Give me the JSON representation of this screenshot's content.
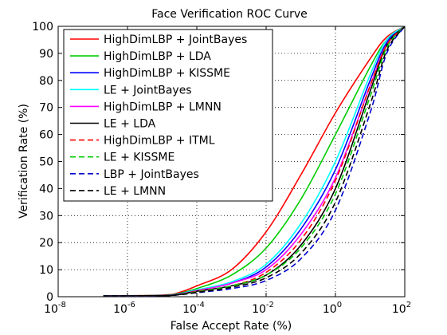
{
  "chart_data": {
    "type": "line",
    "title": "Face Verification ROC Curve",
    "xlabel": "False Accept Rate (%)",
    "ylabel": "Verification Rate (%)",
    "xscale": "log",
    "xlim": [
      1e-08,
      100
    ],
    "ylim": [
      0,
      100
    ],
    "grid": true,
    "legend_position": "top-left",
    "x_ticks": [
      {
        "value": 1e-08,
        "base": "10",
        "exp": "-8"
      },
      {
        "value": 1e-06,
        "base": "10",
        "exp": "-6"
      },
      {
        "value": 0.0001,
        "base": "10",
        "exp": "-4"
      },
      {
        "value": 0.01,
        "base": "10",
        "exp": "-2"
      },
      {
        "value": 1,
        "base": "10",
        "exp": "0"
      },
      {
        "value": 100,
        "base": "10",
        "exp": "2"
      }
    ],
    "y_ticks": [
      0,
      10,
      20,
      30,
      40,
      50,
      60,
      70,
      80,
      90,
      100
    ],
    "series": [
      {
        "name": "HighDimLBP + JointBayes",
        "color": "#ff0000",
        "dash": "solid",
        "points": [
          [
            2e-07,
            0.3
          ],
          [
            1e-05,
            0.6
          ],
          [
            3e-05,
            1.5
          ],
          [
            0.0001,
            4
          ],
          [
            0.001,
            10
          ],
          [
            0.01,
            24
          ],
          [
            0.1,
            45
          ],
          [
            1,
            68
          ],
          [
            10,
            88
          ],
          [
            30,
            96
          ],
          [
            100,
            100
          ]
        ]
      },
      {
        "name": "HighDimLBP + LDA",
        "color": "#00cc00",
        "dash": "solid",
        "points": [
          [
            2e-07,
            0.3
          ],
          [
            1e-05,
            0.5
          ],
          [
            3e-05,
            1.2
          ],
          [
            0.0001,
            3
          ],
          [
            0.001,
            8
          ],
          [
            0.01,
            18
          ],
          [
            0.1,
            36
          ],
          [
            1,
            60
          ],
          [
            10,
            85
          ],
          [
            30,
            95
          ],
          [
            100,
            100
          ]
        ]
      },
      {
        "name": "HighDimLBP + KISSME",
        "color": "#0000ff",
        "dash": "solid",
        "points": [
          [
            2e-07,
            0.3
          ],
          [
            1e-05,
            0.4
          ],
          [
            3e-05,
            1.0
          ],
          [
            0.0001,
            2.5
          ],
          [
            0.001,
            5
          ],
          [
            0.01,
            11
          ],
          [
            0.1,
            25
          ],
          [
            1,
            47
          ],
          [
            10,
            80
          ],
          [
            30,
            94
          ],
          [
            100,
            100
          ]
        ]
      },
      {
        "name": "LE + JointBayes",
        "color": "#00ffff",
        "dash": "solid",
        "points": [
          [
            2e-07,
            0.3
          ],
          [
            1e-05,
            0.4
          ],
          [
            3e-05,
            1.0
          ],
          [
            0.0001,
            2.5
          ],
          [
            0.001,
            5.5
          ],
          [
            0.01,
            12
          ],
          [
            0.1,
            27
          ],
          [
            1,
            50
          ],
          [
            10,
            82
          ],
          [
            30,
            95
          ],
          [
            100,
            100
          ]
        ]
      },
      {
        "name": "HighDimLBP + LMNN",
        "color": "#ff00ff",
        "dash": "solid",
        "points": [
          [
            2e-07,
            0.3
          ],
          [
            1e-05,
            0.4
          ],
          [
            3e-05,
            0.9
          ],
          [
            0.0001,
            2.2
          ],
          [
            0.001,
            5
          ],
          [
            0.01,
            10
          ],
          [
            0.1,
            23
          ],
          [
            1,
            44
          ],
          [
            10,
            78
          ],
          [
            30,
            93
          ],
          [
            100,
            100
          ]
        ]
      },
      {
        "name": "LE + LDA",
        "color": "#000000",
        "dash": "solid",
        "points": [
          [
            2e-07,
            0.3
          ],
          [
            1e-05,
            0.4
          ],
          [
            3e-05,
            0.8
          ],
          [
            0.0001,
            2
          ],
          [
            0.001,
            4
          ],
          [
            0.01,
            8
          ],
          [
            0.1,
            19
          ],
          [
            1,
            40
          ],
          [
            10,
            76
          ],
          [
            30,
            93
          ],
          [
            100,
            100
          ]
        ]
      },
      {
        "name": "HighDimLBP + ITML",
        "color": "#ff0000",
        "dash": "dashed",
        "points": [
          [
            2e-07,
            0.3
          ],
          [
            1e-05,
            0.4
          ],
          [
            3e-05,
            0.8
          ],
          [
            0.0001,
            2
          ],
          [
            0.001,
            4
          ],
          [
            0.01,
            9
          ],
          [
            0.1,
            21
          ],
          [
            1,
            43
          ],
          [
            10,
            78
          ],
          [
            30,
            93
          ],
          [
            100,
            100
          ]
        ]
      },
      {
        "name": "LE + KISSME",
        "color": "#00cc00",
        "dash": "dashed",
        "points": [
          [
            2e-07,
            0.3
          ],
          [
            1e-05,
            0.4
          ],
          [
            3e-05,
            0.8
          ],
          [
            0.0001,
            1.8
          ],
          [
            0.001,
            4
          ],
          [
            0.01,
            8
          ],
          [
            0.1,
            18
          ],
          [
            1,
            38
          ],
          [
            10,
            74
          ],
          [
            30,
            92
          ],
          [
            100,
            100
          ]
        ]
      },
      {
        "name": "LBP + JointBayes",
        "color": "#0000cc",
        "dash": "dashed",
        "points": [
          [
            2e-07,
            0.3
          ],
          [
            1e-05,
            0.4
          ],
          [
            3e-05,
            0.7
          ],
          [
            0.0001,
            1.5
          ],
          [
            0.001,
            3
          ],
          [
            0.01,
            6
          ],
          [
            0.1,
            14
          ],
          [
            1,
            32
          ],
          [
            10,
            68
          ],
          [
            30,
            90
          ],
          [
            100,
            100
          ]
        ]
      },
      {
        "name": "LE + LMNN",
        "color": "#000000",
        "dash": "dashed",
        "points": [
          [
            2e-07,
            0.3
          ],
          [
            1e-05,
            0.4
          ],
          [
            3e-05,
            0.7
          ],
          [
            0.0001,
            1.6
          ],
          [
            0.001,
            3.5
          ],
          [
            0.01,
            7
          ],
          [
            0.1,
            16
          ],
          [
            1,
            35
          ],
          [
            10,
            71
          ],
          [
            30,
            91
          ],
          [
            100,
            100
          ]
        ]
      }
    ]
  }
}
